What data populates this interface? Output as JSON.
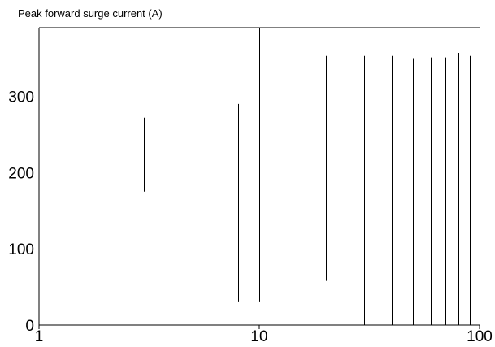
{
  "chart_data": {
    "type": "line",
    "title": "",
    "ylabel": "Peak forward surge current (A)",
    "xlabel": "",
    "x_scale": "log",
    "xlim": [
      1,
      100
    ],
    "ylim": [
      0,
      390
    ],
    "x_ticks": [
      1,
      10,
      100
    ],
    "x_tick_labels": [
      "1",
      "10",
      "100"
    ],
    "y_ticks": [
      0,
      100,
      200,
      300
    ],
    "y_tick_labels": [
      "0",
      "100",
      "200",
      "300"
    ],
    "grid": false,
    "legend": "none",
    "series_color": "#000000",
    "segments": [
      {
        "x": 2,
        "y_low": 175,
        "y_high": 390
      },
      {
        "x": 3,
        "y_low": 175,
        "y_high": 272
      },
      {
        "x": 8,
        "y_low": 30,
        "y_high": 290
      },
      {
        "x": 9,
        "y_low": 30,
        "y_high": 390
      },
      {
        "x": 10,
        "y_low": 30,
        "y_high": 390
      },
      {
        "x": 20,
        "y_low": 58,
        "y_high": 353
      },
      {
        "x": 30,
        "y_low": 0,
        "y_high": 353
      },
      {
        "x": 40,
        "y_low": 0,
        "y_high": 353
      },
      {
        "x": 50,
        "y_low": 0,
        "y_high": 350
      },
      {
        "x": 60,
        "y_low": 0,
        "y_high": 351
      },
      {
        "x": 70,
        "y_low": 0,
        "y_high": 351
      },
      {
        "x": 80,
        "y_low": 0,
        "y_high": 357
      },
      {
        "x": 90,
        "y_low": 0,
        "y_high": 353
      }
    ]
  }
}
